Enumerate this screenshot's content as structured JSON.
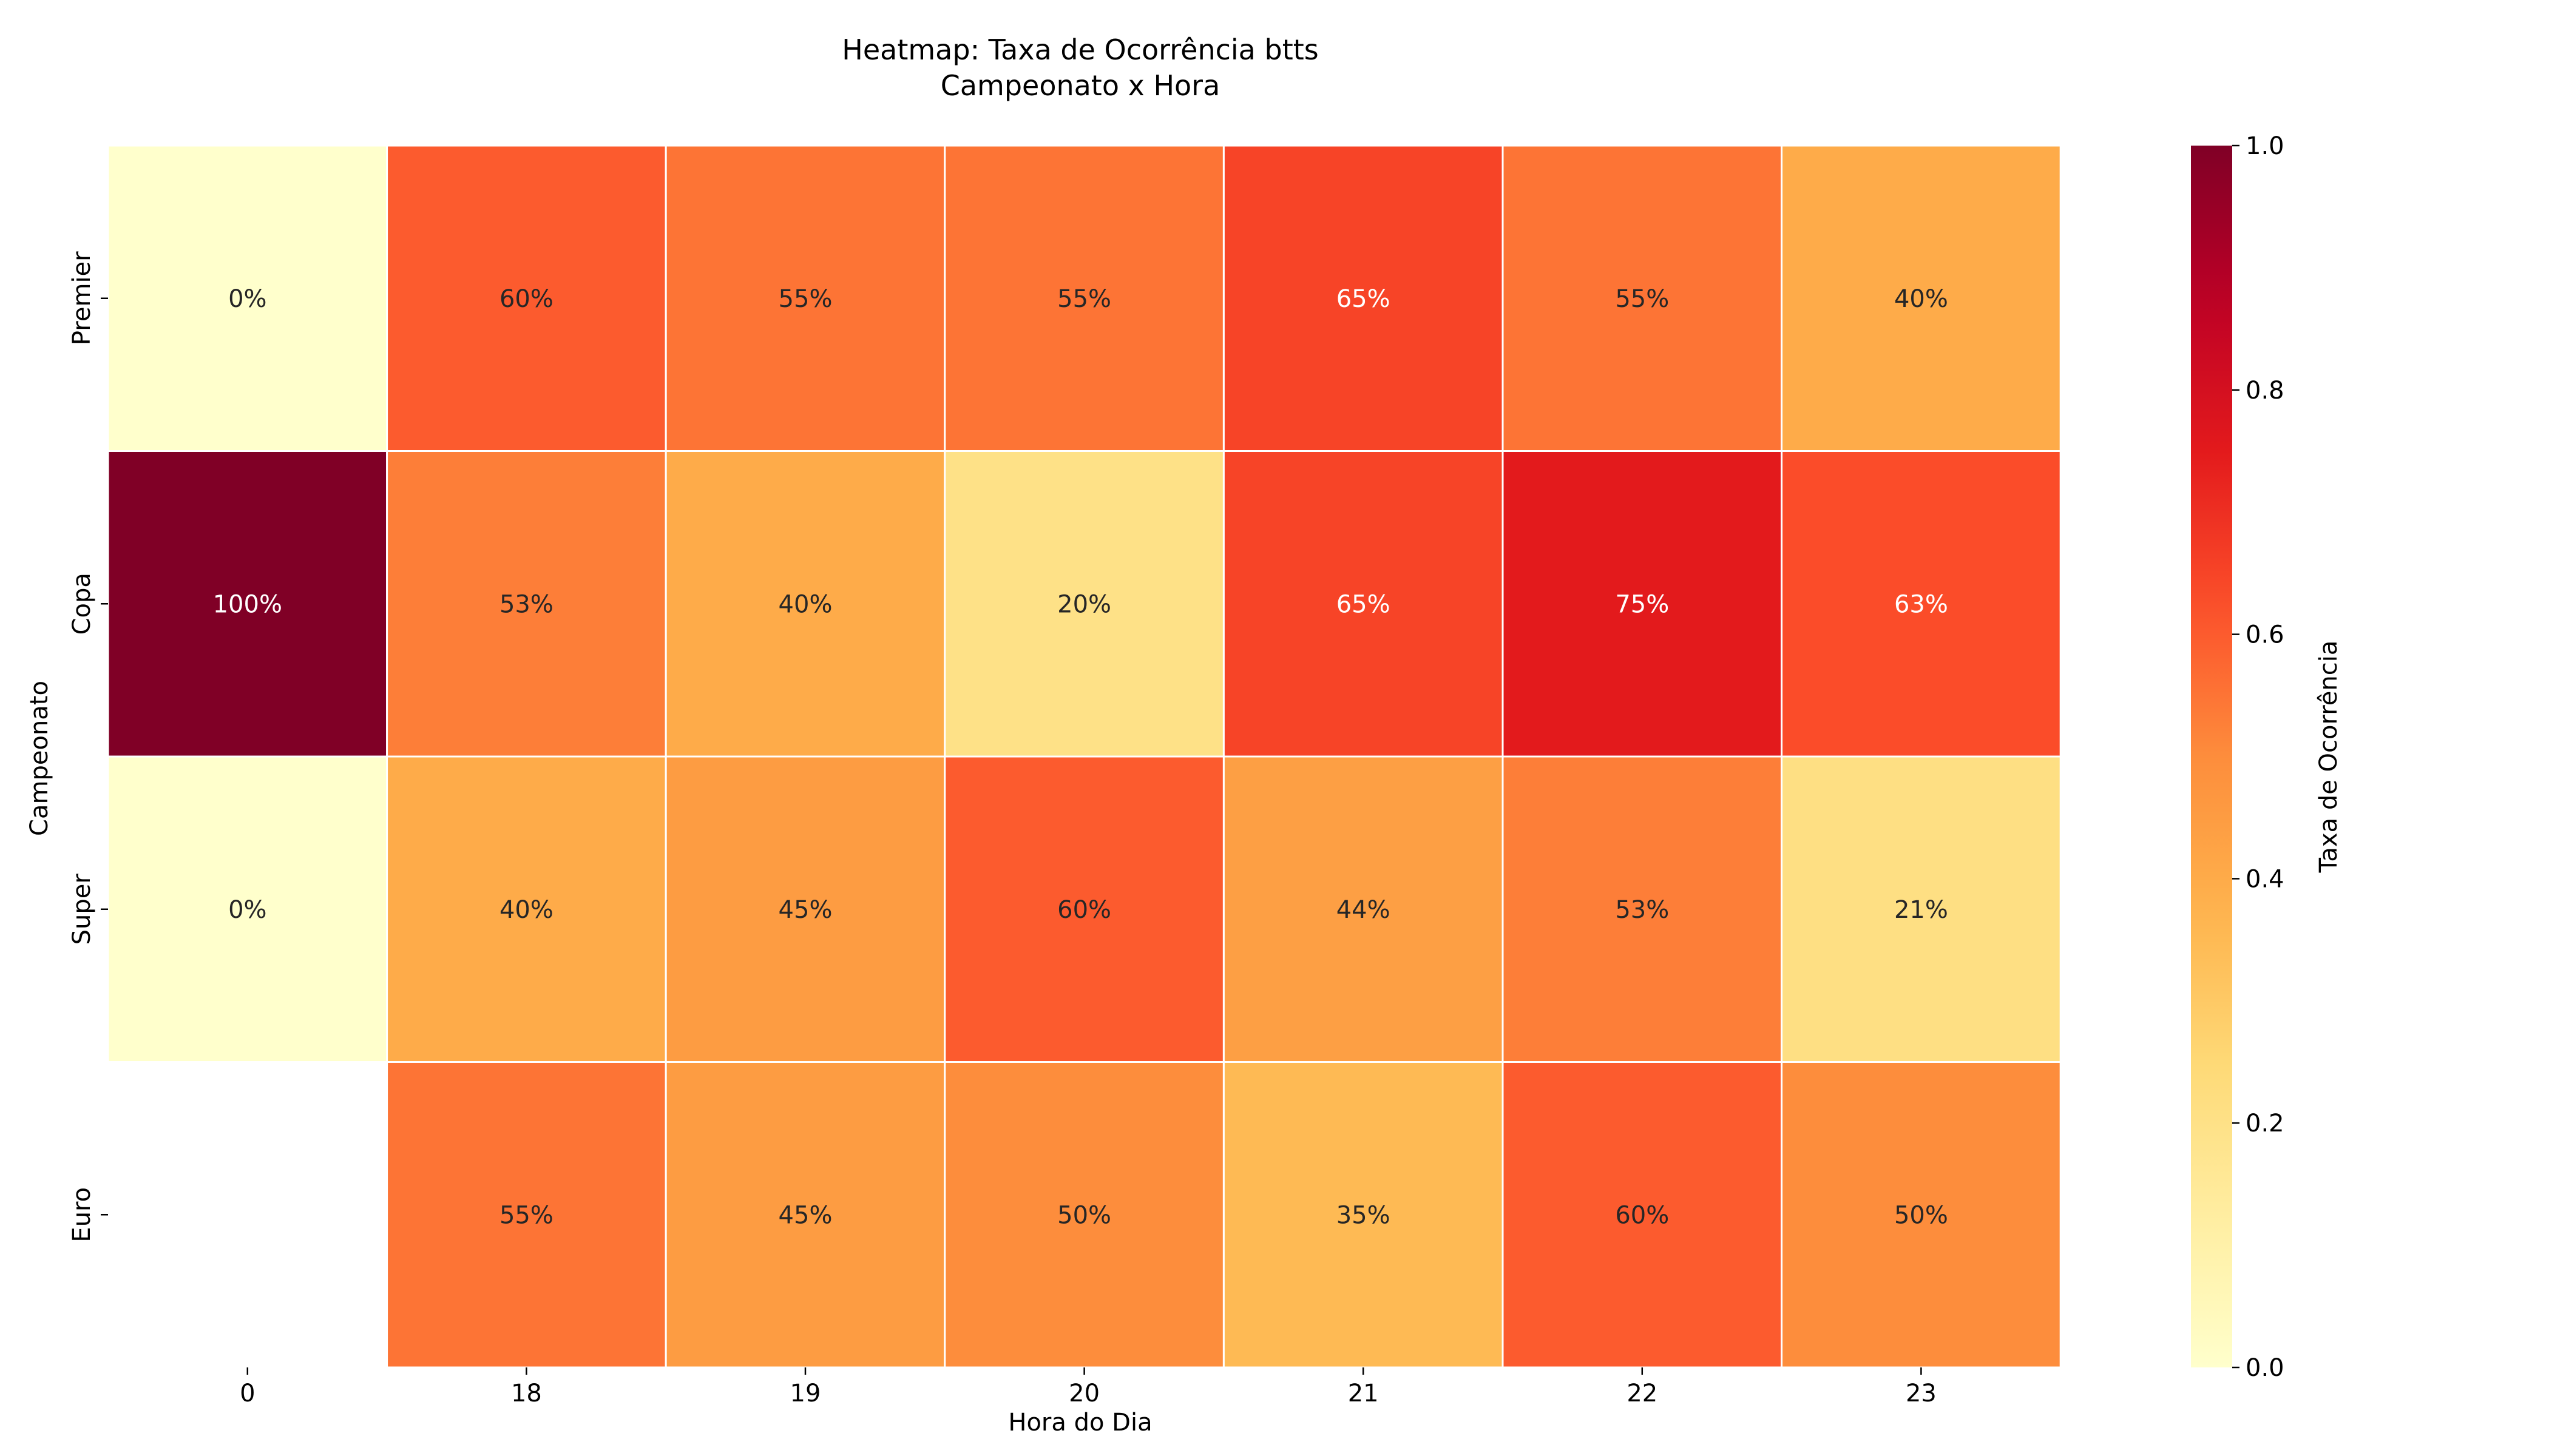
{
  "chart_data": {
    "type": "heatmap",
    "title_lines": [
      "Heatmap: Taxa de Ocorrência btts",
      "Campeonato x Hora"
    ],
    "xlabel": "Hora do Dia",
    "ylabel": "Campeonato",
    "columns": [
      "0",
      "18",
      "19",
      "20",
      "21",
      "22",
      "23"
    ],
    "rows": [
      "Premier",
      "Copa",
      "Super",
      "Euro"
    ],
    "values": [
      [
        0.0,
        0.6,
        0.55,
        0.55,
        0.65,
        0.55,
        0.4
      ],
      [
        1.0,
        0.53,
        0.4,
        0.2,
        0.65,
        0.75,
        0.63
      ],
      [
        0.0,
        0.4,
        0.45,
        0.6,
        0.44,
        0.53,
        0.21
      ],
      [
        null,
        0.55,
        0.45,
        0.5,
        0.35,
        0.6,
        0.5
      ]
    ],
    "labels": [
      [
        "0%",
        "60%",
        "55%",
        "55%",
        "65%",
        "55%",
        "40%"
      ],
      [
        "100%",
        "53%",
        "40%",
        "20%",
        "65%",
        "75%",
        "63%"
      ],
      [
        "0%",
        "40%",
        "45%",
        "60%",
        "44%",
        "53%",
        "21%"
      ],
      [
        "",
        "55%",
        "45%",
        "50%",
        "35%",
        "60%",
        "50%"
      ]
    ],
    "colorbar": {
      "label": "Taxa de Ocorrência",
      "range": [
        0,
        1
      ],
      "ticks": [
        "0.0",
        "0.2",
        "0.4",
        "0.6",
        "0.8",
        "1.0"
      ],
      "colormap": "YlOrRd"
    }
  }
}
